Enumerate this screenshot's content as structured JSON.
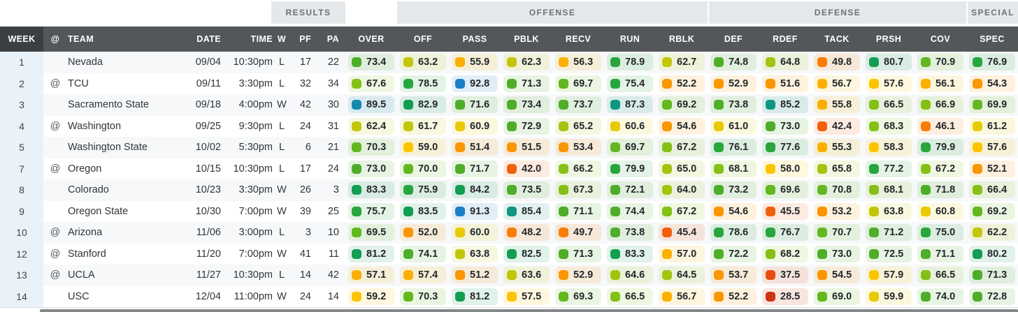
{
  "groups": {
    "results": "RESULTS",
    "offense": "OFFENSE",
    "defense": "DEFENSE",
    "special": "SPECIAL"
  },
  "columns": [
    {
      "key": "week",
      "label": "WEEK"
    },
    {
      "key": "at",
      "label": "@"
    },
    {
      "key": "team",
      "label": "TEAM"
    },
    {
      "key": "date",
      "label": "DATE"
    },
    {
      "key": "time",
      "label": "TIME"
    },
    {
      "key": "w",
      "label": "W"
    },
    {
      "key": "pf",
      "label": "PF"
    },
    {
      "key": "pa",
      "label": "PA"
    },
    {
      "key": "over",
      "label": "OVER"
    },
    {
      "key": "off",
      "label": "OFF"
    },
    {
      "key": "pass",
      "label": "PASS"
    },
    {
      "key": "pblk",
      "label": "PBLK"
    },
    {
      "key": "recv",
      "label": "RECV"
    },
    {
      "key": "run",
      "label": "RUN"
    },
    {
      "key": "rblk",
      "label": "RBLK"
    },
    {
      "key": "def",
      "label": "DEF"
    },
    {
      "key": "rdef",
      "label": "RDEF"
    },
    {
      "key": "tack",
      "label": "TACK"
    },
    {
      "key": "prsh",
      "label": "PRSH"
    },
    {
      "key": "cov",
      "label": "COV"
    },
    {
      "key": "spec",
      "label": "SPEC"
    }
  ],
  "rating_scale": [
    {
      "min": 90,
      "color": "#1b7fc6"
    },
    {
      "min": 88,
      "color": "#1389ae"
    },
    {
      "min": 84.5,
      "color": "#0e9683"
    },
    {
      "min": 80,
      "color": "#129e52"
    },
    {
      "min": 75,
      "color": "#28a63e"
    },
    {
      "min": 71,
      "color": "#4ead29"
    },
    {
      "min": 68.5,
      "color": "#63b71f"
    },
    {
      "min": 66,
      "color": "#84c016"
    },
    {
      "min": 64,
      "color": "#a3c40e"
    },
    {
      "min": 61.5,
      "color": "#c3c608"
    },
    {
      "min": 59.5,
      "color": "#e7ca01"
    },
    {
      "min": 57.5,
      "color": "#fcc400"
    },
    {
      "min": 55,
      "color": "#fbb000"
    },
    {
      "min": 50,
      "color": "#fa9600"
    },
    {
      "min": 46,
      "color": "#f97d05"
    },
    {
      "min": 41,
      "color": "#f2600d"
    },
    {
      "min": 33,
      "color": "#e84b10"
    },
    {
      "min": 0,
      "color": "#cf3412"
    }
  ],
  "rows": [
    {
      "week": "1",
      "at": "",
      "team": "Nevada",
      "date": "09/04",
      "time": "10:30pm",
      "result": "L",
      "pf": "17",
      "pa": "22",
      "ratings": [
        73.4,
        63.2,
        55.9,
        62.3,
        56.3,
        78.9,
        62.7,
        74.8,
        64.8,
        49.8,
        80.7,
        70.9,
        76.9
      ]
    },
    {
      "week": "2",
      "at": "@",
      "team": "TCU",
      "date": "09/11",
      "time": "3:30pm",
      "result": "L",
      "pf": "32",
      "pa": "34",
      "ratings": [
        67.6,
        78.5,
        92.8,
        71.3,
        69.7,
        75.4,
        52.2,
        52.9,
        51.6,
        56.7,
        57.6,
        56.1,
        54.3
      ]
    },
    {
      "week": "3",
      "at": "",
      "team": "Sacramento State",
      "date": "09/18",
      "time": "4:00pm",
      "result": "W",
      "pf": "42",
      "pa": "30",
      "ratings": [
        89.5,
        82.9,
        71.6,
        73.4,
        73.7,
        87.3,
        69.2,
        73.8,
        85.2,
        55.8,
        66.5,
        66.9,
        69.9
      ]
    },
    {
      "week": "4",
      "at": "@",
      "team": "Washington",
      "date": "09/25",
      "time": "9:30pm",
      "result": "L",
      "pf": "24",
      "pa": "31",
      "ratings": [
        62.4,
        61.7,
        60.9,
        72.9,
        65.2,
        60.6,
        54.6,
        61.0,
        73.0,
        42.4,
        68.3,
        46.1,
        61.2
      ]
    },
    {
      "week": "5",
      "at": "",
      "team": "Washington State",
      "date": "10/02",
      "time": "5:30pm",
      "result": "L",
      "pf": "6",
      "pa": "21",
      "ratings": [
        70.3,
        59.0,
        51.4,
        51.5,
        53.4,
        69.7,
        67.2,
        76.1,
        77.6,
        55.3,
        58.3,
        79.9,
        57.6
      ]
    },
    {
      "week": "7",
      "at": "@",
      "team": "Oregon",
      "date": "10/15",
      "time": "10:30pm",
      "result": "L",
      "pf": "17",
      "pa": "24",
      "ratings": [
        73.0,
        70.0,
        71.7,
        42.0,
        66.2,
        79.9,
        65.0,
        68.1,
        58.0,
        65.8,
        77.2,
        67.2,
        52.1
      ]
    },
    {
      "week": "8",
      "at": "",
      "team": "Colorado",
      "date": "10/23",
      "time": "3:30pm",
      "result": "W",
      "pf": "26",
      "pa": "3",
      "ratings": [
        83.3,
        75.9,
        84.2,
        73.5,
        67.3,
        72.1,
        64.0,
        73.2,
        69.6,
        70.8,
        68.1,
        71.8,
        66.4
      ]
    },
    {
      "week": "9",
      "at": "",
      "team": "Oregon State",
      "date": "10/30",
      "time": "7:00pm",
      "result": "W",
      "pf": "39",
      "pa": "25",
      "ratings": [
        75.7,
        83.5,
        91.3,
        85.4,
        71.1,
        74.4,
        67.2,
        54.6,
        45.5,
        53.2,
        63.8,
        60.8,
        69.2
      ]
    },
    {
      "week": "10",
      "at": "@",
      "team": "Arizona",
      "date": "11/06",
      "time": "3:00pm",
      "result": "L",
      "pf": "3",
      "pa": "10",
      "ratings": [
        69.5,
        52.0,
        60.0,
        48.2,
        49.7,
        73.8,
        45.4,
        78.6,
        76.7,
        70.7,
        71.2,
        75.0,
        62.2
      ]
    },
    {
      "week": "12",
      "at": "@",
      "team": "Stanford",
      "date": "11/20",
      "time": "7:00pm",
      "result": "W",
      "pf": "41",
      "pa": "11",
      "ratings": [
        81.2,
        74.1,
        63.8,
        82.5,
        71.3,
        83.3,
        57.0,
        72.2,
        68.2,
        73.0,
        72.5,
        71.1,
        80.2
      ]
    },
    {
      "week": "13",
      "at": "@",
      "team": "UCLA",
      "date": "11/27",
      "time": "10:30pm",
      "result": "L",
      "pf": "14",
      "pa": "42",
      "ratings": [
        57.1,
        57.4,
        51.2,
        63.6,
        52.9,
        64.6,
        64.5,
        53.7,
        37.5,
        54.5,
        57.9,
        66.5,
        71.3
      ]
    },
    {
      "week": "14",
      "at": "",
      "team": "USC",
      "date": "12/04",
      "time": "11:00pm",
      "result": "W",
      "pf": "24",
      "pa": "14",
      "ratings": [
        59.2,
        70.3,
        81.2,
        57.5,
        69.3,
        66.5,
        56.7,
        52.2,
        28.5,
        69.0,
        59.9,
        74.0,
        72.8
      ]
    }
  ]
}
